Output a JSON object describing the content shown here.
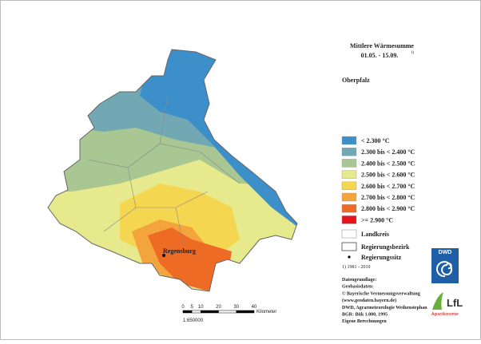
{
  "header": {
    "title": "Mittlere Wärmesumme",
    "period": "01.05. - 15.09.",
    "footnote_mark": "1)",
    "region": "Oberpfalz"
  },
  "legend": {
    "classes": [
      {
        "label": "< 2.300 °C",
        "color": "#3d8fca"
      },
      {
        "label": "2.300 bis < 2.400 °C",
        "color": "#72a8b3"
      },
      {
        "label": "2.400 bis < 2.500 °C",
        "color": "#a9c793"
      },
      {
        "label": "2.500 bis < 2.600 °C",
        "color": "#e6ea8c"
      },
      {
        "label": "2.600 bis < 2.700 °C",
        "color": "#f5d650"
      },
      {
        "label": "2.700 bis < 2.800 °C",
        "color": "#f4a43d"
      },
      {
        "label": "2.800 bis < 2.900 °C",
        "color": "#ee6b25"
      },
      {
        "label": ">= 2.900 °C",
        "color": "#e5141d"
      }
    ],
    "boundaries": [
      "Landkreis",
      "Regierungsbezirk"
    ],
    "seat": "Regierungssitz"
  },
  "footnote": "1) 1981 - 2010",
  "sources": [
    "Datengrundlage:",
    "Geobasisdaten:",
    "© Bayerische Vermessungsverwaltung",
    "(www.geodaten.bayern.de)",
    "DWD, Agrarmeteorologie Weihenstephan",
    "BGR: Bük 1.000, 1995",
    "Eigene Berechnungen"
  ],
  "map": {
    "city": "Regensburg",
    "scale_bar": {
      "ticks": [
        0,
        5,
        10,
        20,
        30,
        40
      ],
      "unit": "Kilometer",
      "ratio": "1:650000"
    }
  },
  "logos": {
    "dwd": "DWD",
    "lfl": "LfL",
    "lfl_sub": "Agrarökonomie"
  }
}
